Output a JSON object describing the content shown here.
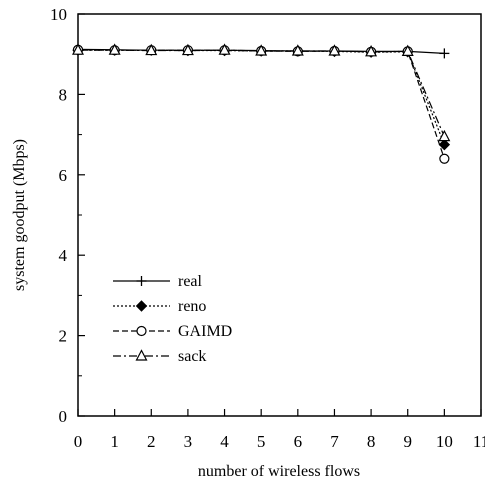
{
  "chart_data": {
    "type": "line",
    "xlabel": "number of wireless flows",
    "ylabel": "system goodput (Mbps)",
    "xlim": [
      0,
      11
    ],
    "ylim": [
      0,
      10
    ],
    "x_ticks": [
      0,
      1,
      2,
      3,
      4,
      5,
      6,
      7,
      8,
      9,
      10,
      11
    ],
    "y_ticks": [
      0,
      2,
      4,
      6,
      8,
      10
    ],
    "x_tick_labels": [
      "0",
      "1",
      "2",
      "3",
      "4",
      "5",
      "6",
      "7",
      "8",
      "9",
      "10",
      "11"
    ],
    "y_tick_labels": [
      "0",
      "2",
      "4",
      "6",
      "8",
      "10"
    ],
    "grid": false,
    "legend_position": "center-left",
    "x": [
      0,
      1,
      2,
      3,
      4,
      5,
      6,
      7,
      8,
      9,
      10
    ],
    "series": [
      {
        "name": "real",
        "marker": "plus",
        "line": "solid",
        "values": [
          9.12,
          9.11,
          9.1,
          9.1,
          9.1,
          9.09,
          9.08,
          9.08,
          9.07,
          9.07,
          9.02
        ]
      },
      {
        "name": "reno",
        "marker": "diamond",
        "line": "dotted",
        "values": [
          9.1,
          9.1,
          9.1,
          9.09,
          9.09,
          9.08,
          9.08,
          9.07,
          9.05,
          9.06,
          6.75
        ]
      },
      {
        "name": "GAIMD",
        "marker": "circle",
        "line": "dashed",
        "values": [
          9.11,
          9.1,
          9.1,
          9.1,
          9.1,
          9.08,
          9.07,
          9.08,
          9.06,
          9.07,
          6.4
        ]
      },
      {
        "name": "sack",
        "marker": "triangle",
        "line": "dashdot",
        "values": [
          9.1,
          9.1,
          9.09,
          9.09,
          9.1,
          9.08,
          9.08,
          9.08,
          9.06,
          9.07,
          6.95
        ]
      }
    ]
  }
}
